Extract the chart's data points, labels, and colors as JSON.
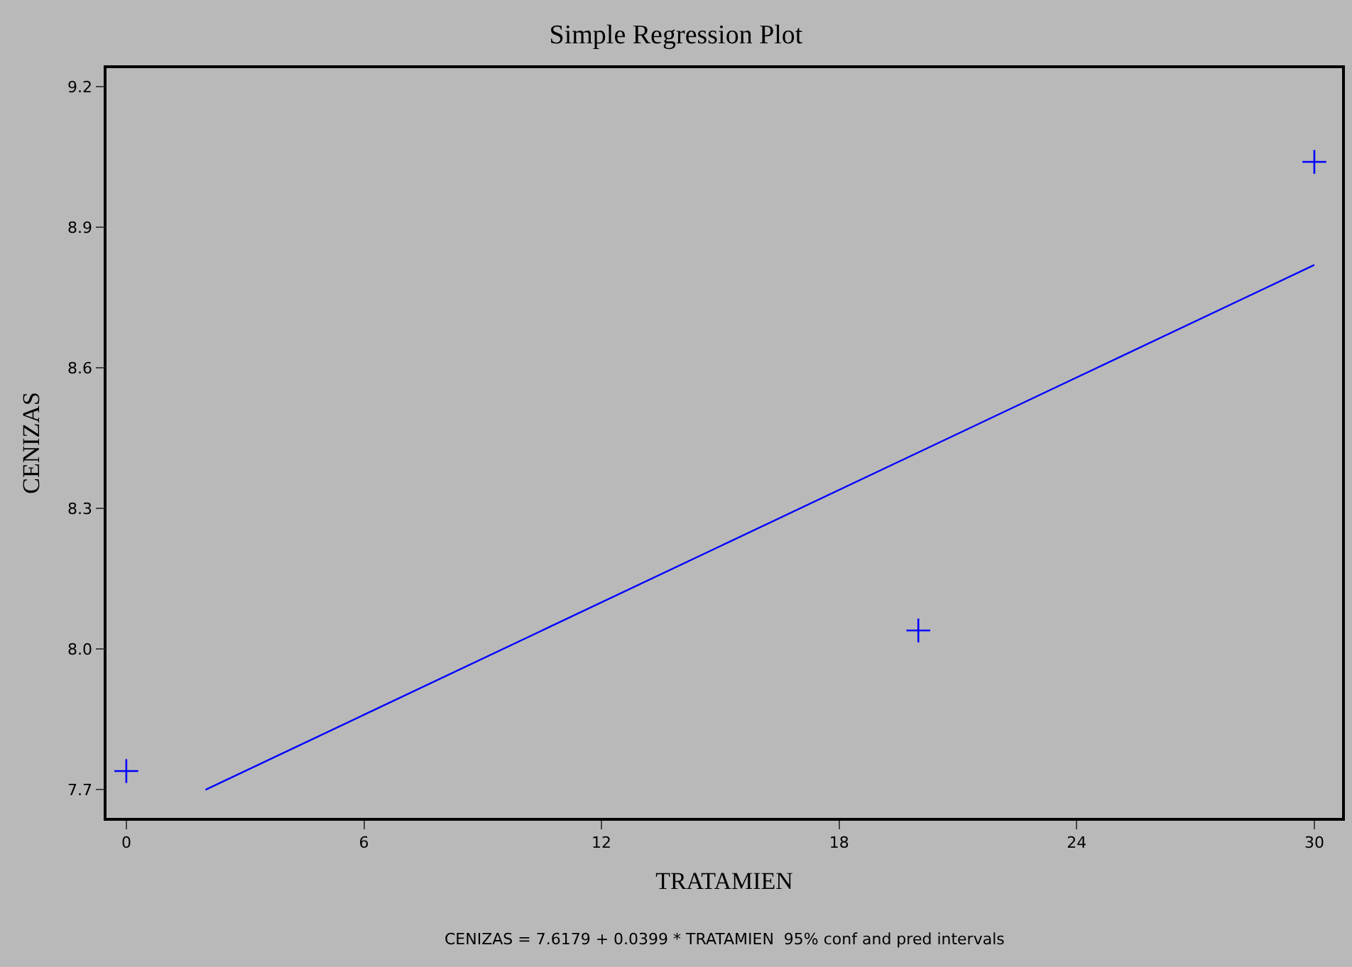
{
  "chart_data": {
    "type": "scatter",
    "title": "Simple Regression Plot",
    "xlabel": "TRATAMIEN",
    "ylabel": "CENIZAS",
    "annotations": [
      "CENIZAS = 7.6179 + 0.0399 * TRATAMIEN  95% conf and pred intervals"
    ],
    "x": [
      0,
      20,
      30
    ],
    "series": [
      {
        "color": "#0000ff",
        "values": [
          7.74,
          8.04,
          9.04
        ],
        "marker": "cross"
      },
      {
        "type": "line",
        "color": "#0000ff",
        "x": [
          2,
          30
        ],
        "values": [
          7.7,
          8.82
        ],
        "line_style": "solid"
      }
    ],
    "xlim": [
      -0.5,
      30.7
    ],
    "xticks": [
      0,
      6,
      12,
      18,
      24,
      30
    ],
    "ylim": [
      7.64,
      9.24
    ],
    "yticks": [
      {
        "value": 7.7,
        "label": "7.7"
      },
      {
        "value": 8.0,
        "label": "8.0"
      },
      {
        "value": 8.3,
        "label": "8.3"
      },
      {
        "value": 8.6,
        "label": "8.6"
      },
      {
        "value": 8.9,
        "label": "8.9"
      },
      {
        "value": 9.2,
        "label": "9.2"
      }
    ],
    "grid": false
  }
}
